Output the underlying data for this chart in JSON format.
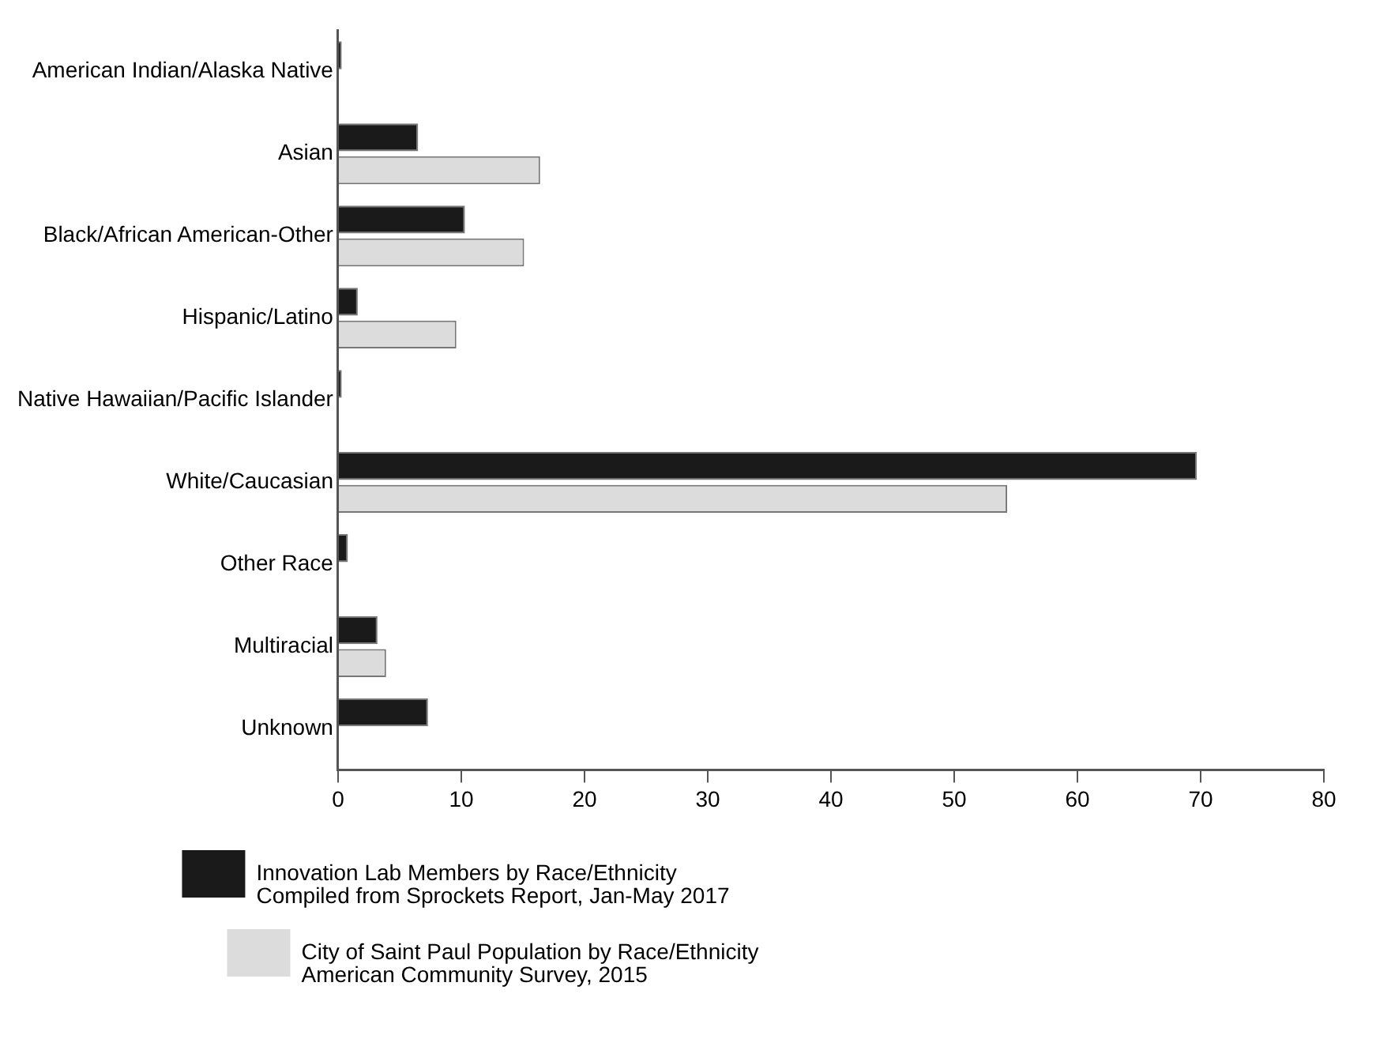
{
  "chart_data": {
    "type": "bar",
    "orientation": "horizontal",
    "categories": [
      "American Indian/Alaska Native",
      "Asian",
      "Black/African American-Other",
      "Hispanic/Latino",
      "Native Hawaiian/Pacific Islander",
      "White/Caucasian",
      "Other Race",
      "Multiracial",
      "Unknown"
    ],
    "series": [
      {
        "name": "Innovation Lab Members by Race/Ethnicity\nCompiled from Sprockets Report, Jan-May 2017",
        "color": "#1a1a1a",
        "values": [
          0.3,
          6.5,
          10.3,
          1.6,
          0.3,
          69.7,
          0.8,
          3.2,
          7.3
        ]
      },
      {
        "name": "City of Saint Paul Population by Race/Ethnicity\nAmerican Community Survey, 2015",
        "color": "#dcdcdc",
        "values": [
          0,
          16.4,
          15.1,
          9.6,
          0,
          54.3,
          0,
          3.9,
          null
        ]
      }
    ],
    "xlim": [
      0,
      80
    ],
    "xticks": [
      0,
      10,
      20,
      30,
      40,
      50,
      60,
      70,
      80
    ],
    "grid": false,
    "legend": "bottom"
  }
}
